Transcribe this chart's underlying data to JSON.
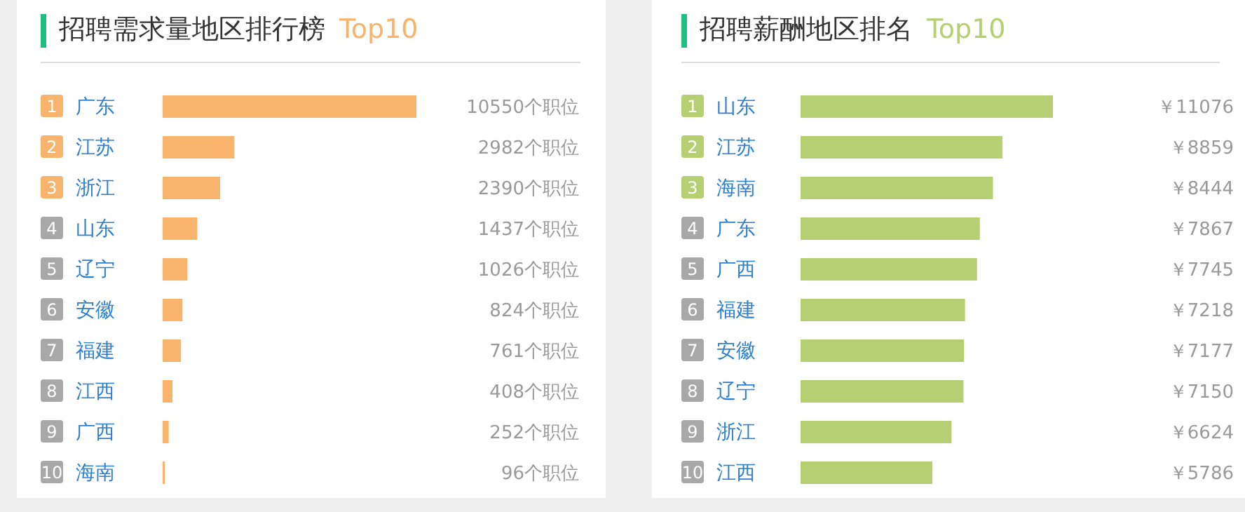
{
  "chart_data": [
    {
      "type": "bar",
      "orientation": "horizontal",
      "title": "招聘需求量地区排行榜",
      "subtitle": "Top10",
      "categories": [
        "广东",
        "江苏",
        "浙江",
        "山东",
        "辽宁",
        "安徽",
        "福建",
        "江西",
        "广西",
        "海南"
      ],
      "values": [
        10550,
        2982,
        2390,
        1437,
        1026,
        824,
        761,
        408,
        252,
        96
      ],
      "value_labels": [
        "10550个职位",
        "2982个职位",
        "2390个职位",
        "1437个职位",
        "1026个职位",
        "824个职位",
        "761个职位",
        "408个职位",
        "252个职位",
        "96个职位"
      ],
      "color": "#f8b46c",
      "annotations": [
        "1",
        "2",
        "3",
        "4",
        "5",
        "6",
        "7",
        "8",
        "9",
        "10"
      ]
    },
    {
      "type": "bar",
      "orientation": "horizontal",
      "title": "招聘薪酬地区排名",
      "subtitle": "Top10",
      "categories": [
        "山东",
        "江苏",
        "海南",
        "广东",
        "广西",
        "福建",
        "安徽",
        "辽宁",
        "浙江",
        "江西"
      ],
      "values": [
        11076,
        8859,
        8444,
        7867,
        7745,
        7218,
        7177,
        7150,
        6624,
        5786
      ],
      "value_labels": [
        "￥11076",
        "￥8859",
        "￥8444",
        "￥7867",
        "￥7745",
        "￥7218",
        "￥7177",
        "￥7150",
        "￥6624",
        "￥5786"
      ],
      "color": "#b5cf72",
      "annotations": [
        "1",
        "2",
        "3",
        "4",
        "5",
        "6",
        "7",
        "8",
        "9",
        "10"
      ]
    }
  ]
}
